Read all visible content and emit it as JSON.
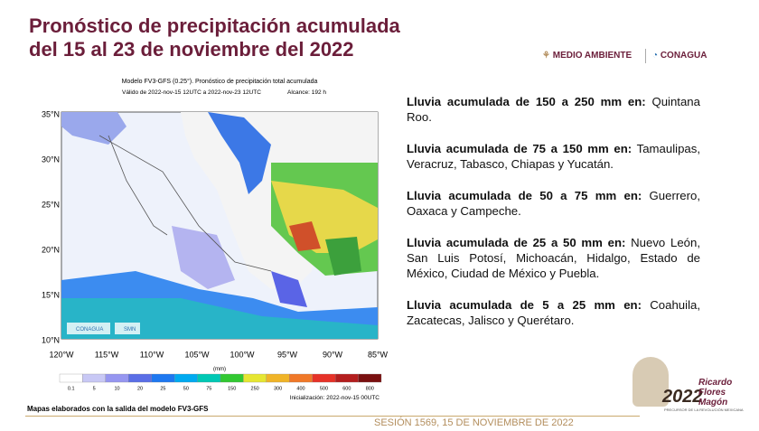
{
  "header": {
    "title_line1": "Pronóstico de precipitación acumulada",
    "title_line2": "del 15 al 23 de noviembre del 2022",
    "logo_left": "MEDIO AMBIENTE",
    "logo_right": "CONAGUA"
  },
  "map": {
    "title": "Modelo FV3-GFS (0.25°). Pronóstico de precipitación total acumulada",
    "valid": "Válido de 2022-nov-15 12UTC a 2022-nov-23 12UTC",
    "range": "Alcance: 192 h",
    "lat_labels": [
      "35°N",
      "30°N",
      "25°N",
      "20°N",
      "15°N",
      "10°N"
    ],
    "lon_labels": [
      "120°W",
      "115°W",
      "110°W",
      "105°W",
      "100°W",
      "95°W",
      "90°W",
      "85°W"
    ],
    "logo_a": "CONAGUA",
    "logo_b": "SMN",
    "colorbar": {
      "unit": "(mm)",
      "labels": [
        "0.1",
        "5",
        "10",
        "20",
        "25",
        "50",
        "75",
        "150",
        "250",
        "300",
        "400",
        "500",
        "600",
        "800"
      ],
      "colors": [
        "#ffffff",
        "#c8c8f5",
        "#9696f0",
        "#5a6ee6",
        "#1e78f0",
        "#00aaf0",
        "#00c8b4",
        "#32c832",
        "#e6e632",
        "#f0b428",
        "#f07828",
        "#e63228",
        "#b41e1e",
        "#7a1010"
      ]
    },
    "init": "Inicialización: 2022-nov-15 00UTC"
  },
  "items": [
    {
      "bold": "Lluvia acumulada de 150 a 250 mm en:",
      "text": "Quintana Roo."
    },
    {
      "bold": "Lluvia acumulada de 75 a 150 mm en:",
      "text": "Tamaulipas, Veracruz, Tabasco, Chiapas y Yucatán."
    },
    {
      "bold": "Lluvia acumulada de 50 a 75 mm en:",
      "text": "Guerrero, Oaxaca y Campeche."
    },
    {
      "bold": "Lluvia acumulada de 25 a 50 mm en:",
      "text": "Nuevo León, San Luis Potosí, Michoacán, Hidalgo, Estado de México, Ciudad de México y Puebla."
    },
    {
      "bold": "Lluvia acumulada de 5 a 25 mm en:",
      "text": "Coahuila, Zacatecas, Jalisco y Querétaro."
    }
  ],
  "footer": {
    "note": "Mapas elaborados con la salida del modelo FV3-GFS",
    "session": "SESIÓN 1569, 15 DE NOVIEMBRE DE 2022",
    "logo_year": "2022",
    "logo_name": "Ricardo Flores Magón",
    "logo_sub": "PRECURSOR DE LA REVOLUCIÓN MEXICANA"
  }
}
